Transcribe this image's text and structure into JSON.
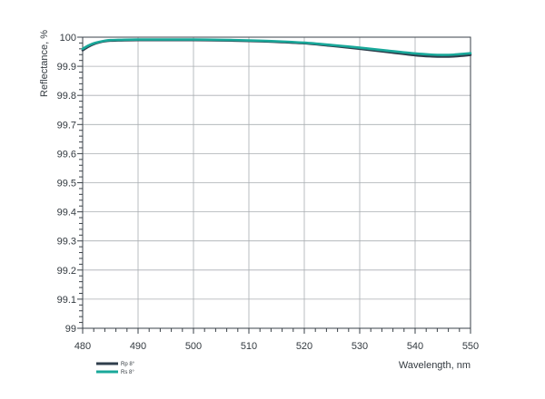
{
  "chart_data": {
    "type": "line",
    "xlabel": "Wavelength, nm",
    "ylabel": "Reflectance, %",
    "xlim": [
      480,
      550
    ],
    "ylim": [
      99,
      100
    ],
    "x_ticks": [
      "480",
      "490",
      "500",
      "510",
      "520",
      "530",
      "540",
      "550"
    ],
    "y_ticks": [
      "99",
      "99.1",
      "99.2",
      "99.3",
      "99.4",
      "99.5",
      "99.6",
      "99.7",
      "99.8",
      "99.9",
      "100"
    ],
    "grid": true,
    "legend_position": "bottom-left",
    "series": [
      {
        "name": "Rp 8°",
        "color": "#2f3e4c",
        "x": [
          480,
          481,
          482,
          483,
          484,
          485,
          487,
          490,
          495,
          500,
          505,
          510,
          515,
          520,
          525,
          530,
          535,
          540,
          543,
          545,
          547,
          550
        ],
        "y": [
          99.955,
          99.967,
          99.976,
          99.982,
          99.986,
          99.988,
          99.989,
          99.99,
          99.99,
          99.99,
          99.989,
          99.987,
          99.984,
          99.979,
          99.97,
          99.96,
          99.949,
          99.938,
          99.934,
          99.933,
          99.934,
          99.939
        ]
      },
      {
        "name": "Rs 8°",
        "color": "#19a89a",
        "x": [
          480,
          481,
          482,
          483,
          484,
          485,
          487,
          490,
          495,
          500,
          505,
          510,
          515,
          520,
          525,
          530,
          535,
          540,
          543,
          545,
          547,
          550
        ],
        "y": [
          99.96,
          99.971,
          99.979,
          99.984,
          99.988,
          99.99,
          99.991,
          99.992,
          99.992,
          99.992,
          99.991,
          99.989,
          99.986,
          99.981,
          99.973,
          99.964,
          99.954,
          99.944,
          99.94,
          99.939,
          99.94,
          99.945
        ]
      }
    ]
  }
}
